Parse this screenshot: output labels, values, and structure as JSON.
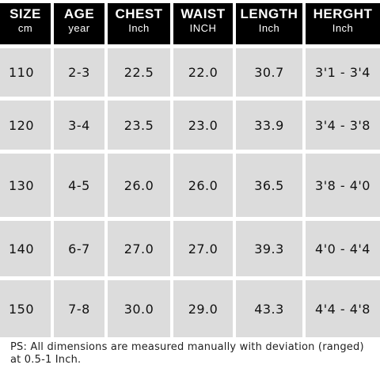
{
  "size_chart": {
    "columns": [
      {
        "label": "SIZE",
        "unit": "cm"
      },
      {
        "label": "AGE",
        "unit": "year"
      },
      {
        "label": "CHEST",
        "unit": "Inch"
      },
      {
        "label": "WAIST",
        "unit": "INCH"
      },
      {
        "label": "LENGTH",
        "unit": "Inch"
      },
      {
        "label": "HERGHT",
        "unit": "Inch"
      }
    ],
    "rows": [
      [
        "110",
        "2-3",
        "22.5",
        "22.0",
        "30.7",
        "3'1 - 3'4"
      ],
      [
        "120",
        "3-4",
        "23.5",
        "23.0",
        "33.9",
        "3'4 - 3'8"
      ],
      [
        "130",
        "4-5",
        "26.0",
        "26.0",
        "36.5",
        "3'8 - 4'0"
      ],
      [
        "140",
        "6-7",
        "27.0",
        "27.0",
        "39.3",
        "4'0 - 4'4"
      ],
      [
        "150",
        "7-8",
        "30.0",
        "29.0",
        "43.3",
        "4'4 - 4'8"
      ]
    ]
  },
  "note": {
    "text": "PS:  All dimensions are measured manually with deviation (ranged) at 0.5-1 Inch."
  },
  "colors": {
    "header_bg": "#000000",
    "header_text": "#ffffff",
    "cell_bg": "#dcdcdc",
    "cell_text": "#111111"
  }
}
